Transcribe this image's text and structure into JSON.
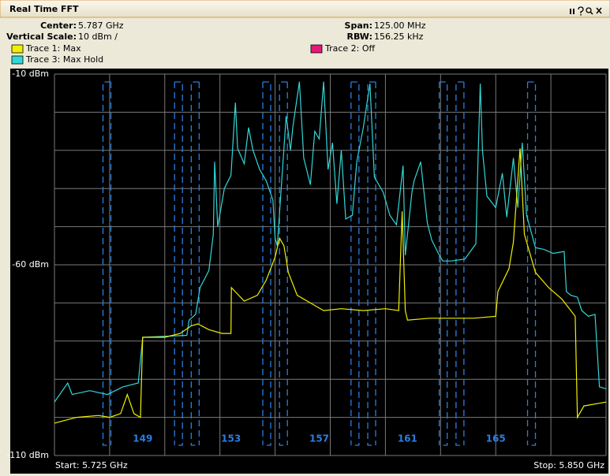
{
  "header": {
    "title": "Real Time FFT",
    "center_label": "Center:",
    "center": "5.787 GHz",
    "scale_label": "Vertical Scale:",
    "scale": "10 dBm /",
    "span_label": "Span:",
    "span": "125.00 MHz",
    "rbw_label": "RBW:",
    "rbw": "156.25 kHz"
  },
  "chart_data": {
    "type": "line",
    "xlim": [
      5.725,
      5.85
    ],
    "ylim": [
      -110,
      -10
    ],
    "yticks": [
      {
        "value": -10,
        "label": "-10 dBm"
      },
      {
        "value": -60,
        "label": "-60 dBm"
      },
      {
        "value": -110,
        "label": "-110 dBm"
      }
    ],
    "ygrid": [
      -10,
      -20,
      -30,
      -40,
      -50,
      -60,
      -70,
      -80,
      -90,
      -100,
      -110
    ],
    "xgrid": [
      5.725,
      5.7375,
      5.75,
      5.7625,
      5.775,
      5.7875,
      5.8,
      5.8125,
      5.825,
      5.8375,
      5.85
    ],
    "grid": true,
    "start_label": "Start: 5.725 GHz",
    "stop_label": "Stop: 5.850 GHz",
    "channels": [
      {
        "label": 149,
        "start": 5.736,
        "stop": 5.754
      },
      {
        "label": 153,
        "start": 5.756,
        "stop": 5.774
      },
      {
        "label": 157,
        "start": 5.776,
        "stop": 5.794
      },
      {
        "label": 161,
        "start": 5.796,
        "stop": 5.814
      },
      {
        "label": 165,
        "start": 5.816,
        "stop": 5.834
      }
    ],
    "series": [
      {
        "name": "Trace 1: Max",
        "color": "#f0f000",
        "x": [
          5.725,
          5.73,
          5.735,
          5.7375,
          5.74,
          5.7415,
          5.743,
          5.7445,
          5.745,
          5.75,
          5.7535,
          5.756,
          5.7575,
          5.76,
          5.763,
          5.765,
          5.7651,
          5.768,
          5.771,
          5.773,
          5.775,
          5.776,
          5.777,
          5.778,
          5.78,
          5.783,
          5.786,
          5.79,
          5.795,
          5.8,
          5.803,
          5.8038,
          5.8045,
          5.805,
          5.81,
          5.815,
          5.82,
          5.825,
          5.8255,
          5.828,
          5.829,
          5.8305,
          5.8315,
          5.834,
          5.837,
          5.84,
          5.843,
          5.8435,
          5.845,
          5.85
        ],
        "values": [
          -101.5,
          -100,
          -99.5,
          -100,
          -99,
          -94,
          -99,
          -100,
          -79,
          -79,
          -78,
          -76,
          -75.5,
          -77,
          -78,
          -78,
          -66,
          -69.5,
          -68,
          -64,
          -58,
          -53,
          -55,
          -62,
          -68,
          -70,
          -72,
          -71.5,
          -72,
          -71.5,
          -72,
          -46,
          -72,
          -74.5,
          -74,
          -74,
          -74,
          -73.5,
          -67,
          -61,
          -54,
          -29.5,
          -52,
          -62,
          -66,
          -69,
          -73.5,
          -100,
          -97,
          -96
        ]
      },
      {
        "name": "Trace 3: Max Hold",
        "color": "#33d6d6",
        "x": [
          5.725,
          5.728,
          5.729,
          5.733,
          5.737,
          5.7405,
          5.744,
          5.745,
          5.755,
          5.7555,
          5.757,
          5.758,
          5.76,
          5.761,
          5.7613,
          5.762,
          5.7635,
          5.765,
          5.766,
          5.7665,
          5.768,
          5.769,
          5.77,
          5.7715,
          5.773,
          5.7745,
          5.775,
          5.7755,
          5.7765,
          5.7775,
          5.7785,
          5.779,
          5.7805,
          5.7815,
          5.783,
          5.784,
          5.785,
          5.786,
          5.787,
          5.788,
          5.789,
          5.79,
          5.791,
          5.7925,
          5.7935,
          5.795,
          5.7965,
          5.7975,
          5.7995,
          5.801,
          5.8025,
          5.804,
          5.8045,
          5.806,
          5.8065,
          5.808,
          5.8095,
          5.8105,
          5.812,
          5.813,
          5.815,
          5.818,
          5.8205,
          5.821,
          5.8215,
          5.822,
          5.823,
          5.825,
          5.8265,
          5.8275,
          5.829,
          5.83,
          5.831,
          5.832,
          5.834,
          5.836,
          5.838,
          5.8405,
          5.841,
          5.842,
          5.8435,
          5.8445,
          5.846,
          5.8475,
          5.8485,
          5.85
        ],
        "values": [
          -96,
          -91,
          -94,
          -93,
          -94,
          -92,
          -91,
          -79,
          -78.5,
          -74.5,
          -73,
          -66,
          -61.5,
          -52,
          -33,
          -50,
          -40,
          -36.5,
          -17.5,
          -29.5,
          -33.5,
          -24,
          -30,
          -35,
          -38,
          -43,
          -53,
          -55,
          -38,
          -21,
          -30,
          -24,
          -12,
          -32,
          -39,
          -25,
          -27,
          -12,
          -35,
          -28,
          -44,
          -30,
          -48,
          -47,
          -33,
          -24,
          -12.5,
          -37,
          -41,
          -47,
          -49.5,
          -34,
          -57.5,
          -41,
          -38,
          -33,
          -49,
          -53.5,
          -57,
          -59,
          -59,
          -58.5,
          -54.5,
          -32,
          -12.5,
          -30,
          -42,
          -45,
          -36,
          -47.5,
          -32,
          -45,
          -28,
          -47,
          -55.5,
          -56,
          -57,
          -56.5,
          -67,
          -68,
          -68.5,
          -72,
          -73.5,
          -73,
          -92,
          -92.5
        ]
      },
      {
        "name": "Trace 2: Off",
        "color": "#e8177a",
        "x": [],
        "values": []
      }
    ]
  }
}
